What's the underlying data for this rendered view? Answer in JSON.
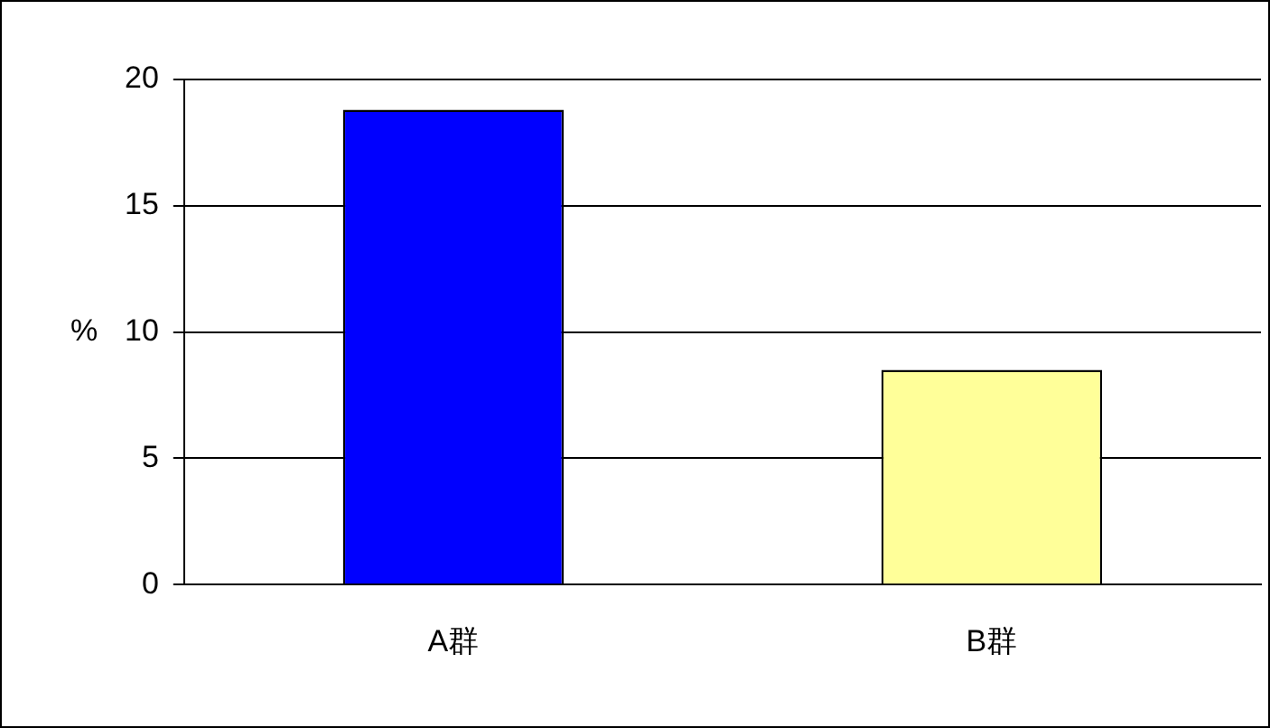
{
  "chart_data": {
    "type": "bar",
    "ylabel": "%",
    "categories": [
      "A群",
      "B群"
    ],
    "values": [
      18.8,
      8.5
    ],
    "colors": [
      "#0000ff",
      "#ffff99"
    ],
    "ylim": [
      0,
      20
    ],
    "yticks": [
      0,
      5,
      10,
      15,
      20
    ],
    "grid": "y",
    "legend": false
  }
}
